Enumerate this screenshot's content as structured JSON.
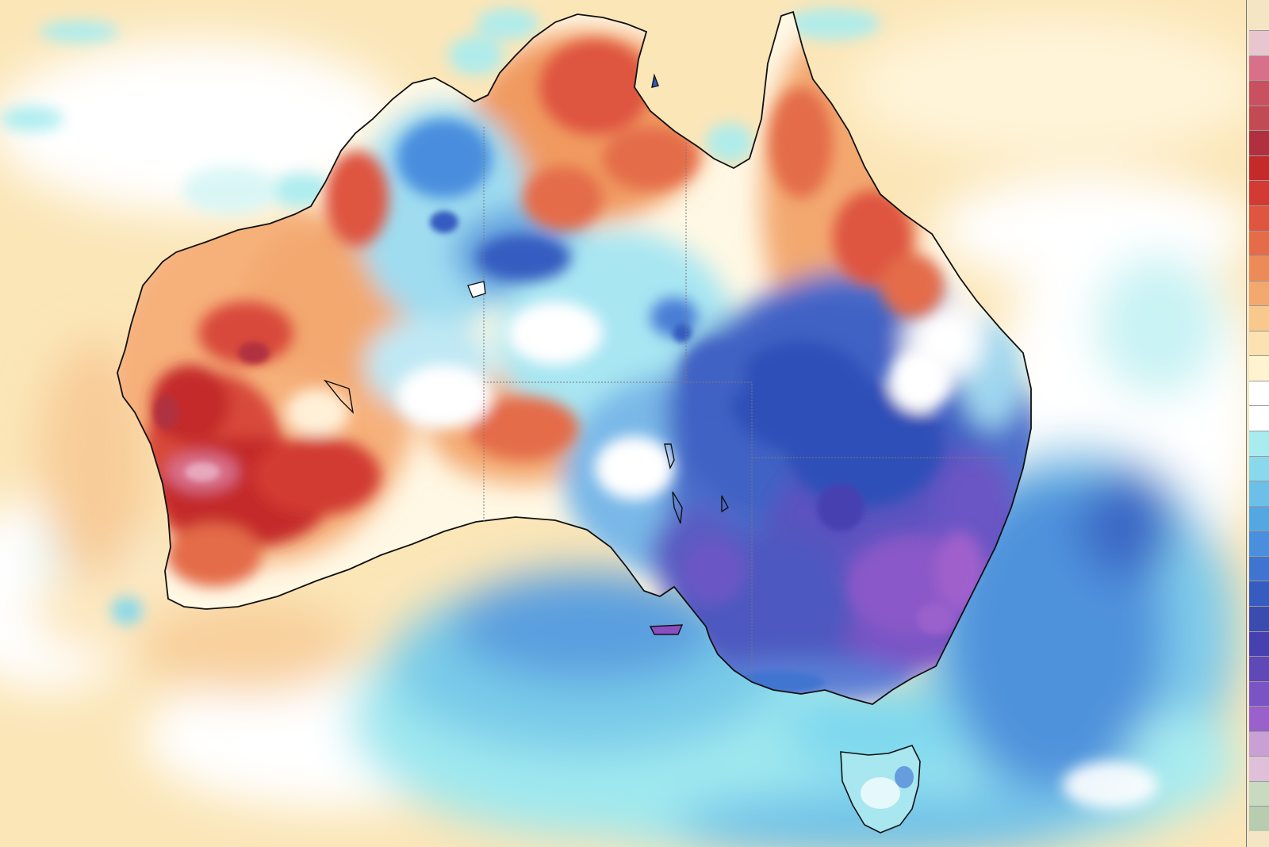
{
  "map": {
    "type": "temperature-anomaly-heatmap",
    "region": "Australia",
    "features": [
      "western-australia-warm-anomaly",
      "northern-territory-warm-anomaly",
      "queensland-warm-anomaly",
      "south-eastern-cold-anomaly",
      "southern-ocean-cold-anomaly",
      "tasman-sea-cold-anomaly",
      "tasmania"
    ],
    "labels_shown": false
  },
  "colorbar": {
    "position": "right",
    "labels_shown": false,
    "colors": [
      "#e7c6cf",
      "#d8708a",
      "#c9505f",
      "#c24a55",
      "#b03040",
      "#c42a2a",
      "#d23a33",
      "#de5540",
      "#e46c48",
      "#ec8a58",
      "#f3a870",
      "#f8c88d",
      "#fbe2b0",
      "#fff4cf",
      "#ffffff",
      "#ffffff",
      "#a8ecf0",
      "#8ad8ec",
      "#6cc0e8",
      "#54a8e2",
      "#4a8ede",
      "#3f74d0",
      "#365cc0",
      "#3a4cb0",
      "#4640b0",
      "#6048b8",
      "#7a54c4",
      "#9a60cc",
      "#c8a0d4",
      "#e0c0d8",
      "#c8dac0",
      "#b8ccb0"
    ]
  },
  "colors": {
    "ocean_warm": "#fbe2b0",
    "ocean_neutral": "#ffffff",
    "cool_light": "#a8ecf0",
    "cool_mid": "#54a8e2",
    "cool_deep": "#365cc0",
    "cold_purple": "#7a54c4",
    "warm_mid": "#ec8a58",
    "warm_deep": "#c42a2a",
    "coastline": "#101010"
  }
}
